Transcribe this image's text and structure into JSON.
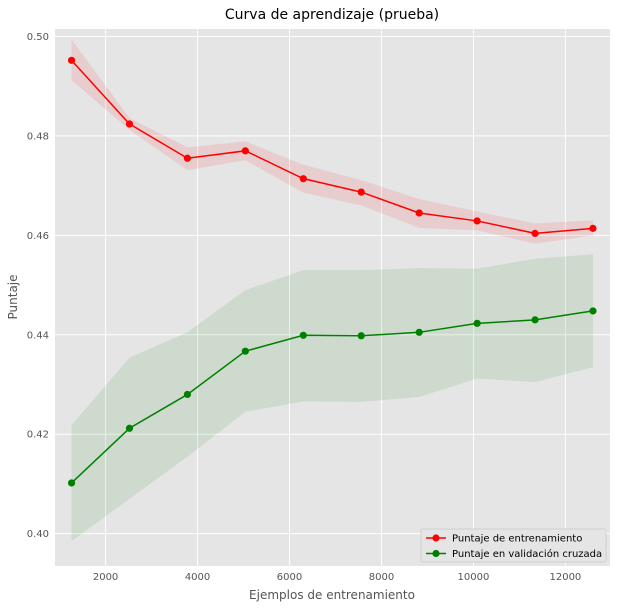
{
  "chart_data": {
    "type": "line",
    "title": "Curva de aprendizaje (prueba)",
    "xlabel": "Ejemplos de entrenamiento",
    "ylabel": "Puntaje",
    "xlim": [
      900,
      12970
    ],
    "ylim": [
      0.3935,
      0.5015
    ],
    "xticks": [
      2000,
      4000,
      6000,
      8000,
      10000,
      12000
    ],
    "yticks": [
      0.4,
      0.42,
      0.44,
      0.46,
      0.48,
      0.5
    ],
    "xtick_labels": [
      "2000",
      "4000",
      "6000",
      "8000",
      "10000",
      "12000"
    ],
    "ytick_labels": [
      "0.40",
      "0.42",
      "0.44",
      "0.46",
      "0.48",
      "0.50"
    ],
    "grid": true,
    "background": "#e5e5e5",
    "legend_position": "bottom-right",
    "x": [
      1260,
      2520,
      3780,
      5040,
      6300,
      7560,
      8820,
      10080,
      11340,
      12600
    ],
    "series": [
      {
        "name": "Puntaje de entrenamiento",
        "color": "#ff0000",
        "band_color": "#ff0000",
        "values": [
          0.4952,
          0.4824,
          0.4755,
          0.477,
          0.4714,
          0.4687,
          0.4645,
          0.4629,
          0.4604,
          0.4614
        ],
        "lower": [
          0.4912,
          0.4812,
          0.4731,
          0.4751,
          0.4686,
          0.466,
          0.4615,
          0.461,
          0.4583,
          0.46
        ],
        "upper": [
          0.4994,
          0.4836,
          0.4777,
          0.4789,
          0.4742,
          0.4711,
          0.4673,
          0.4648,
          0.4624,
          0.463
        ]
      },
      {
        "name": "Puntaje en validación cruzada",
        "color": "#008000",
        "band_color": "#008000",
        "values": [
          0.4102,
          0.4212,
          0.428,
          0.4367,
          0.4399,
          0.4398,
          0.4405,
          0.4423,
          0.443,
          0.4448
        ],
        "lower": [
          0.3985,
          0.407,
          0.4155,
          0.4245,
          0.4266,
          0.4265,
          0.4275,
          0.4312,
          0.4305,
          0.4335
        ],
        "upper": [
          0.4218,
          0.4354,
          0.4405,
          0.449,
          0.453,
          0.453,
          0.4534,
          0.4533,
          0.4553,
          0.4562
        ]
      }
    ]
  }
}
